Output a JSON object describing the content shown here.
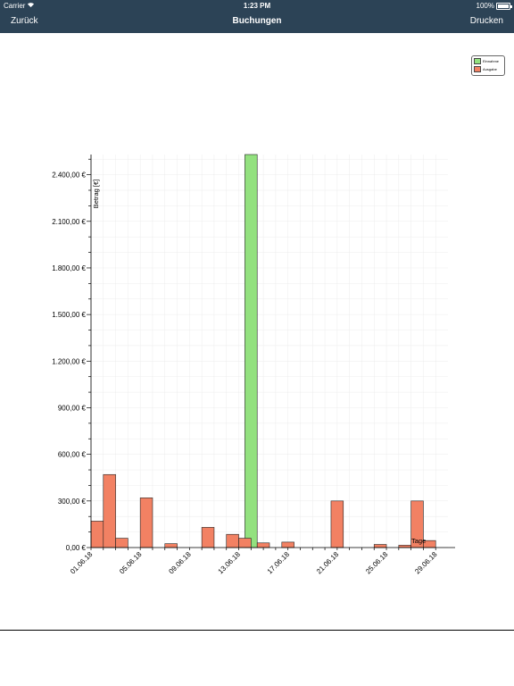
{
  "status_bar": {
    "carrier": "Carrier",
    "time": "1:23 PM",
    "battery": "100%",
    "battery_level": 1.0
  },
  "nav": {
    "back_label": "Zurück",
    "title": "Buchungen",
    "print_label": "Drucken"
  },
  "colors": {
    "nav_bg": "#2c4356",
    "einnahme": "#93e17f",
    "ausgabe": "#f28163"
  },
  "legend": {
    "items": [
      {
        "label": "Einnahme",
        "color": "#93e17f"
      },
      {
        "label": "Ausgabe",
        "color": "#f28163"
      }
    ]
  },
  "chart_data": {
    "type": "bar",
    "ylabel": "Betrag [€]",
    "xlabel": "Tage",
    "ylim": [
      0,
      2530
    ],
    "yticks": [
      0,
      300,
      600,
      900,
      1200,
      1500,
      1800,
      2100,
      2400
    ],
    "ytick_labels": [
      "0,00 €",
      "300,00 €",
      "600,00 €",
      "900,00 €",
      "1.200,00 €",
      "1.500,00 €",
      "1.800,00 €",
      "2.100,00 €",
      "2.400,00 €"
    ],
    "x_day_range": [
      1,
      29
    ],
    "xtick_days": [
      1,
      5,
      9,
      13,
      17,
      21,
      25,
      29
    ],
    "xtick_labels": [
      "01.06.18",
      "05.06.18",
      "09.06.18",
      "13.06.18",
      "17.06.18",
      "21.06.18",
      "25.06.18",
      "29.06.18"
    ],
    "grid": true,
    "legend_position": "top-right",
    "series": [
      {
        "name": "Einnahme",
        "color": "#93e17f",
        "points": [
          {
            "day": 13.5,
            "value": 2530
          }
        ]
      },
      {
        "name": "Ausgabe",
        "color": "#f28163",
        "points": [
          {
            "day": 1.0,
            "value": 170
          },
          {
            "day": 2.0,
            "value": 470
          },
          {
            "day": 3.0,
            "value": 60
          },
          {
            "day": 5.0,
            "value": 320
          },
          {
            "day": 7.0,
            "value": 25
          },
          {
            "day": 10.0,
            "value": 130
          },
          {
            "day": 12.0,
            "value": 85
          },
          {
            "day": 13.0,
            "value": 60
          },
          {
            "day": 14.5,
            "value": 30
          },
          {
            "day": 16.5,
            "value": 35
          },
          {
            "day": 20.5,
            "value": 300
          },
          {
            "day": 24.0,
            "value": 20
          },
          {
            "day": 26.0,
            "value": 15
          },
          {
            "day": 27.0,
            "value": 300
          },
          {
            "day": 28.0,
            "value": 45
          }
        ]
      }
    ]
  }
}
